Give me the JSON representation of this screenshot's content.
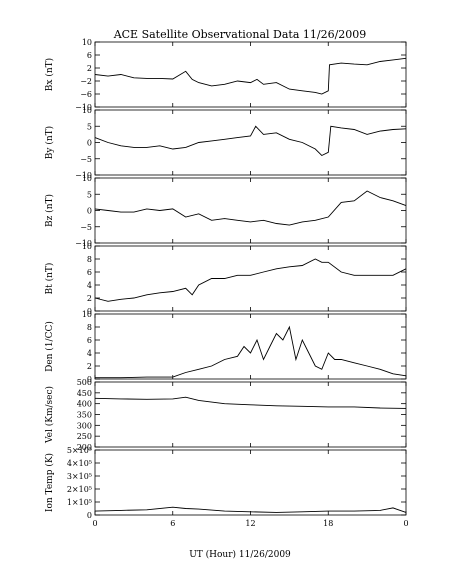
{
  "chart_data": {
    "type": "line",
    "title": "ACE Satellite Observational Data   11/26/2009",
    "xlabel": "UT (Hour)   11/26/2009",
    "xlim": [
      0,
      24
    ],
    "xtick_labels": [
      "0",
      "6",
      "12",
      "18",
      "0"
    ],
    "grid": false,
    "panels": [
      {
        "ylabel": "Bx (nT)",
        "ylim": [
          -10,
          10
        ],
        "ytick_labels": [
          "10",
          "6",
          "2",
          "−2",
          "−6",
          "−10"
        ],
        "ytick_values": [
          10,
          6,
          2,
          -2,
          -6,
          -10
        ],
        "series": [
          {
            "x": [
              0,
              1,
              2,
              3,
              4,
              5,
              6,
              7,
              7.5,
              8,
              9,
              10,
              11,
              12,
              12.5,
              13,
              14,
              15,
              16,
              17,
              17.5,
              18,
              18.1,
              19,
              20,
              21,
              22,
              23,
              24
            ],
            "y": [
              0,
              -0.5,
              0,
              -1,
              -1.2,
              -1.2,
              -1.4,
              1,
              -1.5,
              -2.5,
              -3.5,
              -3,
              -2,
              -2.5,
              -1.5,
              -3,
              -2.5,
              -4.5,
              -5,
              -5.5,
              -6,
              -5,
              3,
              3.5,
              3.2,
              3,
              4,
              4.5,
              5
            ]
          }
        ]
      },
      {
        "ylabel": "By (nT)",
        "ylim": [
          -10,
          10
        ],
        "ytick_labels": [
          "10",
          "5",
          "0",
          "−5",
          "−10"
        ],
        "ytick_values": [
          10,
          5,
          0,
          -5,
          -10
        ],
        "series": [
          {
            "x": [
              0,
              1,
              2,
              3,
              4,
              5,
              6,
              7,
              8,
              9,
              10,
              11,
              12,
              12.4,
              13,
              14,
              15,
              16,
              17,
              17.5,
              18,
              18.2,
              19,
              20,
              21,
              22,
              23,
              24
            ],
            "y": [
              1.5,
              0,
              -1,
              -1.5,
              -1.5,
              -1,
              -2,
              -1.5,
              0,
              0.5,
              1,
              1.5,
              2,
              5,
              2.5,
              3,
              1,
              0,
              -2,
              -4,
              -3,
              5,
              4.5,
              4,
              2.5,
              3.5,
              4,
              4.2
            ]
          }
        ]
      },
      {
        "ylabel": "Bz (nT)",
        "ylim": [
          -10,
          10
        ],
        "ytick_labels": [
          "10",
          "5",
          "0",
          "−5",
          "−10"
        ],
        "ytick_values": [
          10,
          5,
          0,
          -5,
          -10
        ],
        "series": [
          {
            "x": [
              0,
              1,
              2,
              3,
              4,
              5,
              6,
              7,
              8,
              9,
              10,
              11,
              12,
              13,
              14,
              15,
              16,
              17,
              18,
              19,
              20,
              21,
              22,
              23,
              24
            ],
            "y": [
              0.5,
              0,
              -0.5,
              -0.5,
              0.5,
              0,
              0.5,
              -2,
              -1,
              -3,
              -2.5,
              -3,
              -3.5,
              -3,
              -4,
              -4.5,
              -3.5,
              -3,
              -2,
              2.5,
              3,
              6,
              4,
              3,
              1.5
            ]
          }
        ]
      },
      {
        "ylabel": "Bt (nT)",
        "ylim": [
          0,
          10
        ],
        "ytick_labels": [
          "10",
          "8",
          "6",
          "4",
          "2",
          "0"
        ],
        "ytick_values": [
          10,
          8,
          6,
          4,
          2,
          0
        ],
        "series": [
          {
            "x": [
              0,
              1,
              2,
              3,
              4,
              5,
              6,
              7,
              7.5,
              8,
              9,
              10,
              11,
              12,
              13,
              14,
              15,
              16,
              17,
              17.5,
              18,
              19,
              20,
              21,
              22,
              23,
              24
            ],
            "y": [
              2,
              1.5,
              1.8,
              2,
              2.5,
              2.8,
              3,
              3.5,
              2.5,
              4,
              5,
              5,
              5.5,
              5.5,
              6,
              6.5,
              6.8,
              7,
              8,
              7.5,
              7.5,
              6,
              5.5,
              5.5,
              5.5,
              5.5,
              6.5
            ]
          }
        ]
      },
      {
        "ylabel": "Den (1/CC)",
        "ylim": [
          0,
          10
        ],
        "ytick_labels": [
          "10",
          "8",
          "6",
          "4",
          "2",
          "0"
        ],
        "ytick_values": [
          10,
          8,
          6,
          4,
          2,
          0
        ],
        "series": [
          {
            "x": [
              0,
              2,
              4,
              6,
              7,
              8,
              9,
              10,
              11,
              11.5,
              12,
              12.5,
              13,
              13.5,
              14,
              14.5,
              15,
              15.5,
              16,
              16.5,
              17,
              17.5,
              18,
              18.5,
              19,
              20,
              21,
              22,
              23,
              24
            ],
            "y": [
              0.2,
              0.2,
              0.3,
              0.3,
              1,
              1.5,
              2,
              3,
              3.5,
              5,
              4,
              6,
              3,
              5,
              7,
              6,
              8,
              3,
              6,
              4,
              2,
              1.5,
              4,
              3,
              3,
              2.5,
              2,
              1.5,
              0.8,
              0.5
            ]
          }
        ]
      },
      {
        "ylabel": "Vel (Km/sec)",
        "ylim": [
          200,
          500
        ],
        "ytick_labels": [
          "500",
          "450",
          "400",
          "350",
          "300",
          "250",
          "200"
        ],
        "ytick_values": [
          500,
          450,
          400,
          350,
          300,
          250,
          200
        ],
        "series": [
          {
            "x": [
              0,
              2,
              4,
              6,
              7,
              8,
              10,
              12,
              14,
              16,
              18,
              20,
              22,
              24
            ],
            "y": [
              425,
              422,
              420,
              422,
              430,
              415,
              400,
              395,
              390,
              388,
              385,
              385,
              380,
              378
            ]
          }
        ]
      },
      {
        "ylabel": "Ion Temp (K)",
        "ylim": [
          0,
          500000
        ],
        "ytick_labels": [
          "5×10⁵",
          "4×10⁵",
          "3×10⁵",
          "2×10⁵",
          "1×10⁵",
          "0"
        ],
        "ytick_values": [
          500000,
          400000,
          300000,
          200000,
          100000,
          0
        ],
        "series": [
          {
            "x": [
              0,
              2,
              4,
              6,
              7,
              8,
              10,
              12,
              14,
              16,
              18,
              20,
              22,
              23,
              24
            ],
            "y": [
              30000,
              35000,
              40000,
              60000,
              50000,
              45000,
              30000,
              25000,
              20000,
              25000,
              30000,
              30000,
              35000,
              55000,
              20000
            ]
          }
        ]
      }
    ]
  }
}
